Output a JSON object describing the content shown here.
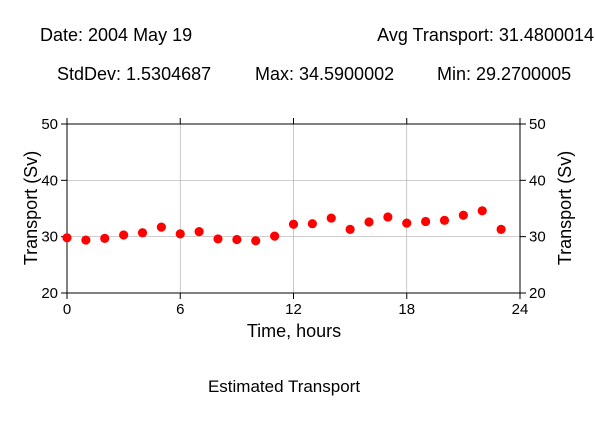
{
  "header": {
    "date": "Date: 2004 May 19",
    "avg": "Avg Transport: 31.4800014",
    "stddev": "StdDev: 1.5304687",
    "max": "Max: 34.5900002",
    "min": "Min: 29.2700005"
  },
  "caption": "Estimated Transport",
  "chart_data": {
    "type": "scatter",
    "xlabel": "Time, hours",
    "ylabel": "Transport (Sv)",
    "ylabel_right": "Transport (Sv)",
    "xlim": [
      0,
      24
    ],
    "ylim": [
      20,
      50
    ],
    "xticks": [
      0,
      6,
      12,
      18,
      24
    ],
    "yticks": [
      20,
      30,
      40,
      50
    ],
    "grid": true,
    "marker_color": "#ff0000",
    "series": [
      {
        "x": [
          0,
          1,
          2,
          3,
          4,
          5,
          6,
          7,
          8,
          9,
          10,
          11,
          12,
          13,
          14,
          15,
          16,
          17,
          18,
          19,
          20,
          21,
          22,
          23
        ],
        "y": [
          29.8,
          29.4,
          29.7,
          30.3,
          30.7,
          31.7,
          30.5,
          30.9,
          29.6,
          29.5,
          29.27,
          30.1,
          32.2,
          32.3,
          33.3,
          31.3,
          32.6,
          33.5,
          32.4,
          32.7,
          32.9,
          33.8,
          34.59,
          31.3
        ]
      }
    ]
  }
}
